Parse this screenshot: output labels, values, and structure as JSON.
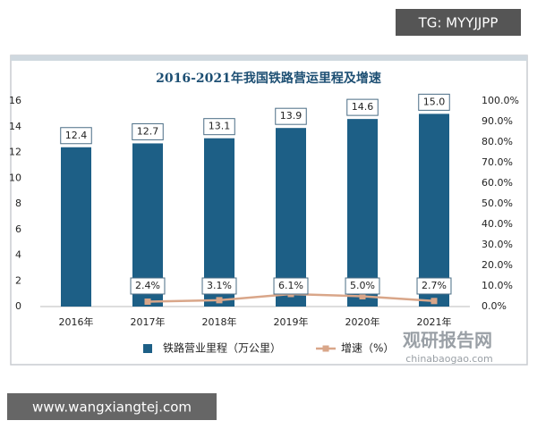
{
  "chart_data": {
    "type": "bar-line",
    "title": "2016-2021年我国铁路营运里程及增速",
    "categories": [
      "2016年",
      "2017年",
      "2018年",
      "2019年",
      "2020年",
      "2021年"
    ],
    "series": [
      {
        "name": "铁路营业里程（万公里）",
        "type": "bar",
        "color": "#1d5f86",
        "values": [
          12.4,
          12.7,
          13.1,
          13.9,
          14.6,
          15.0
        ],
        "value_labels": [
          "12.4",
          "12.7",
          "13.1",
          "13.9",
          "14.6",
          "15.0"
        ]
      },
      {
        "name": "增速（%）",
        "type": "line",
        "axis": "y2",
        "color": "#d9a689",
        "values": [
          null,
          2.4,
          3.1,
          6.1,
          5.0,
          2.7
        ],
        "value_labels": [
          null,
          "2.4%",
          "3.1%",
          "6.1%",
          "5.0%",
          "2.7%"
        ]
      }
    ],
    "ylim": [
      0,
      16
    ],
    "yticks": [
      0,
      2,
      4,
      6,
      8,
      10,
      12,
      14,
      16
    ],
    "y2lim": [
      0,
      100
    ],
    "y2ticks": [
      {
        "value": 0,
        "label": "0.0%"
      },
      {
        "value": 10,
        "label": "10.0%"
      },
      {
        "value": 20,
        "label": "20.0%"
      },
      {
        "value": 30,
        "label": "30.0%"
      },
      {
        "value": 40,
        "label": "40.0%"
      },
      {
        "value": 50,
        "label": "50.0%"
      },
      {
        "value": 60,
        "label": "60.0%"
      },
      {
        "value": 70,
        "label": "70.0%"
      },
      {
        "value": 80,
        "label": "80.0%"
      },
      {
        "value": 90,
        "label": "90.0%"
      },
      {
        "value": 100,
        "label": "100.0%"
      }
    ],
    "legend": "bottom"
  },
  "overlays": {
    "top_tag": "TG: MYYJJPP",
    "bottom_tag": "www.wangxiangtej.com",
    "watermark": "观研报告网",
    "watermark_url": "chinabaogao.com"
  }
}
